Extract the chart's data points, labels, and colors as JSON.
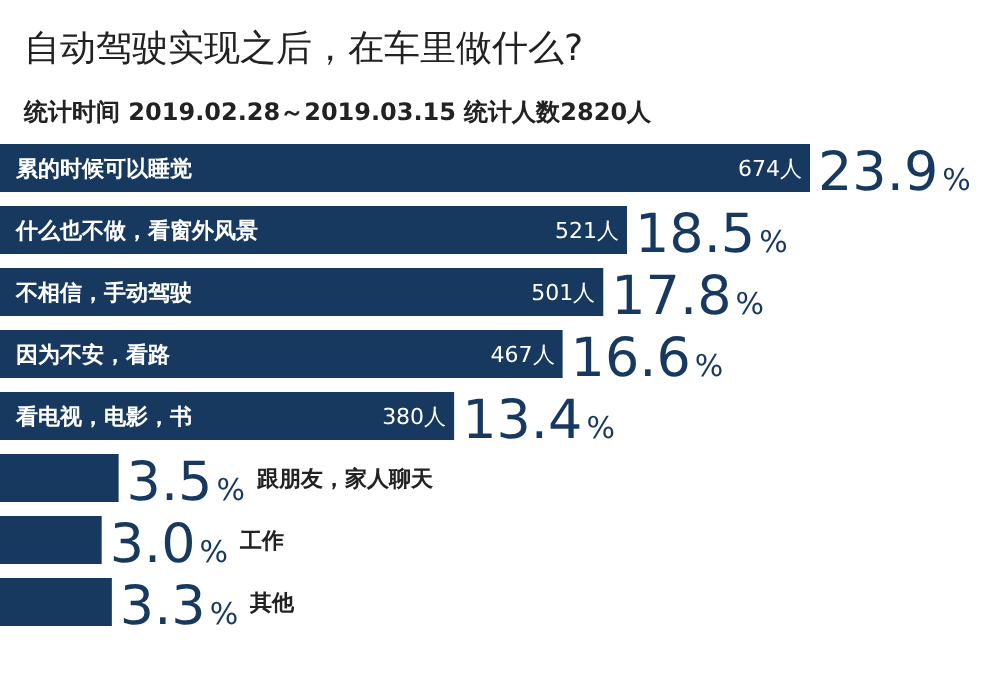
{
  "chart_data": {
    "type": "bar",
    "orientation": "horizontal",
    "title": "自动驾驶实现之后，在车里做什么?",
    "subtitle": "统计时间 2019.02.28～2019.03.15 统计人数2820人",
    "categories": [
      "累的时候可以睡觉",
      "什么也不做，看窗外风景",
      "不相信，手动驾驶",
      "因为不安，看路",
      "看电视，电影，书",
      "跟朋友，家人聊天",
      "工作",
      "其他"
    ],
    "values": [
      23.9,
      18.5,
      17.8,
      16.6,
      13.4,
      3.5,
      3.0,
      3.3
    ],
    "value_labels": [
      "23.9%",
      "18.5%",
      "17.8%",
      "16.6%",
      "13.4%",
      "3.5%",
      "3.0%",
      "3.3%"
    ],
    "color": "#17395f",
    "annotations": [
      {
        "text": "674人",
        "x": 23.9,
        "y": "累的时候可以睡觉"
      },
      {
        "text": "521人",
        "x": 18.5,
        "y": "什么也不做，看窗外风景"
      },
      {
        "text": "501人",
        "x": 17.8,
        "y": "不相信，手动驾驶"
      },
      {
        "text": "467人",
        "x": 16.6,
        "y": "因为不安，看路"
      },
      {
        "text": "380人",
        "x": 13.4,
        "y": "看电视，电影，书"
      }
    ]
  }
}
